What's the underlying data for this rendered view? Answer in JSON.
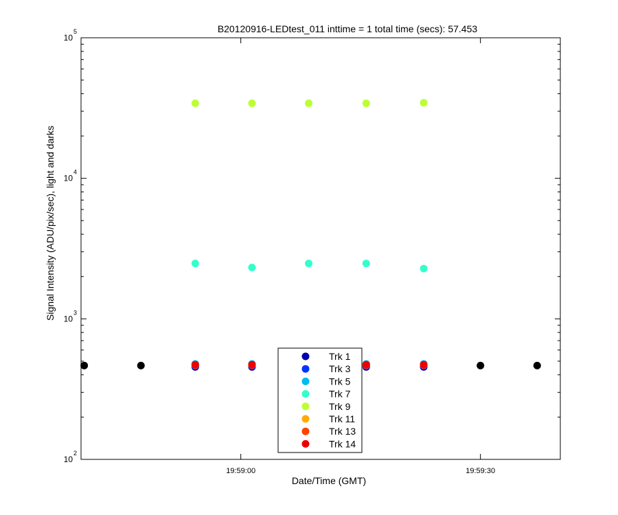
{
  "chart_data": {
    "type": "scatter",
    "title": "B20120916-LEDtest_011 inttime = 1 total time (secs): 57.453",
    "xlabel": "Date/Time (GMT)",
    "ylabel": "Signal Intensity (ADU/pix/sec), light and darks",
    "x_ticks": [
      "19:59:00",
      "19:59:30"
    ],
    "x_tick_values": [
      0,
      30
    ],
    "xlim": [
      -20,
      40
    ],
    "y_scale": "log",
    "ylim": [
      100,
      100000
    ],
    "y_ticks": [
      {
        "base": "10",
        "exp": "2",
        "value": 100
      },
      {
        "base": "10",
        "exp": "3",
        "value": 1000
      },
      {
        "base": "10",
        "exp": "4",
        "value": 10000
      },
      {
        "base": "10",
        "exp": "5",
        "value": 100000
      }
    ],
    "grid": false,
    "legend_position": "bottom-center",
    "series": [
      {
        "name": "Trk 1",
        "color": "#0000aa",
        "x": [
          -5.7,
          1.4,
          8.5,
          15.7,
          22.9
        ],
        "y": [
          455,
          455,
          455,
          455,
          455
        ]
      },
      {
        "name": "Trk 3",
        "color": "#0033ff",
        "x": [
          -5.7,
          1.4,
          8.5,
          15.7,
          22.9
        ],
        "y": [
          462,
          462,
          462,
          462,
          462
        ]
      },
      {
        "name": "Trk 5",
        "color": "#00bbee",
        "x": [
          -5.7,
          1.4,
          8.5,
          15.7,
          22.9
        ],
        "y": [
          478,
          478,
          478,
          478,
          478
        ]
      },
      {
        "name": "Trk 7",
        "color": "#33ffcc",
        "x": [
          -5.7,
          1.4,
          8.5,
          15.7,
          22.9
        ],
        "y": [
          2480,
          2320,
          2480,
          2480,
          2280
        ]
      },
      {
        "name": "Trk 9",
        "color": "#bbff33",
        "x": [
          -5.7,
          1.4,
          8.5,
          15.7,
          22.9
        ],
        "y": [
          34200,
          34200,
          34200,
          34200,
          34500
        ]
      },
      {
        "name": "Trk 11",
        "color": "#ffaa00",
        "x": [
          -5.7,
          1.4,
          8.5,
          15.7,
          22.9
        ],
        "y": [
          470,
          470,
          470,
          470,
          470
        ]
      },
      {
        "name": "Trk 13",
        "color": "#ff4400",
        "x": [
          -5.7,
          1.4,
          8.5,
          15.7,
          22.9
        ],
        "y": [
          468,
          468,
          468,
          468,
          468
        ]
      },
      {
        "name": "Trk 14",
        "color": "#ee0000",
        "x": [
          -5.7,
          1.4,
          8.5,
          15.7,
          22.9
        ],
        "y": [
          472,
          472,
          472,
          472,
          472
        ]
      }
    ],
    "darks": {
      "color": "#000000",
      "x": [
        -19.6,
        -12.5,
        30.0,
        37.1
      ],
      "y": [
        465,
        465,
        465,
        465
      ]
    }
  }
}
